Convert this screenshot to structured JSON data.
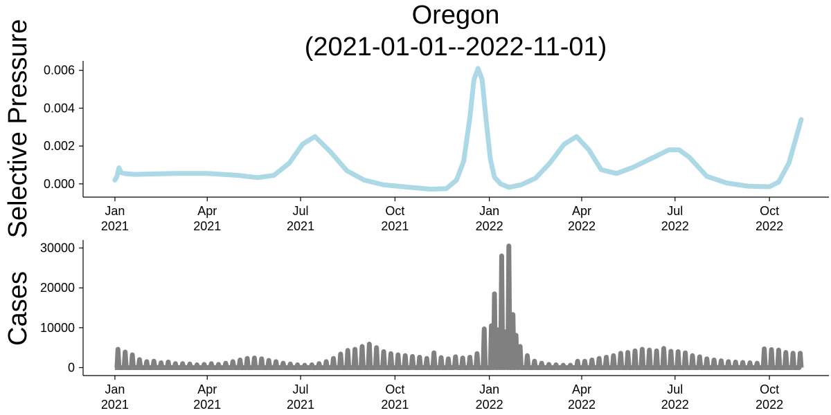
{
  "chart_data": [
    {
      "type": "line",
      "title": [
        "Oregon",
        "(2021-01-01--2022-11-01)"
      ],
      "ylabel": "Selective Pressure",
      "xlabel": "",
      "x_range": [
        "2020-12-01",
        "2022-11-28"
      ],
      "ylim": [
        -0.0007,
        0.0065
      ],
      "yticks": [
        0.0,
        0.002,
        0.004,
        0.006
      ],
      "ytick_labels": [
        "0.000",
        "0.002",
        "0.004",
        "0.006"
      ],
      "xticks": [
        "2021-01-01",
        "2021-04-01",
        "2021-07-01",
        "2021-10-01",
        "2022-01-01",
        "2022-04-01",
        "2022-07-01",
        "2022-10-01"
      ],
      "xtick_labels": [
        [
          "Jan",
          "2021"
        ],
        [
          "Apr",
          "2021"
        ],
        [
          "Jul",
          "2021"
        ],
        [
          "Oct",
          "2021"
        ],
        [
          "Jan",
          "2022"
        ],
        [
          "Apr",
          "2022"
        ],
        [
          "Jul",
          "2022"
        ],
        [
          "Oct",
          "2022"
        ]
      ],
      "grid": false,
      "color": "#add8e6",
      "series": [
        {
          "x": [
            "2021-01-01",
            "2021-01-03",
            "2021-01-05",
            "2021-01-07",
            "2021-01-10",
            "2021-01-20",
            "2021-02-05",
            "2021-03-01",
            "2021-04-01",
            "2021-05-01",
            "2021-05-20",
            "2021-06-05",
            "2021-06-20",
            "2021-07-03",
            "2021-07-15",
            "2021-07-30",
            "2021-08-15",
            "2021-09-01",
            "2021-09-20",
            "2021-10-15",
            "2021-11-05",
            "2021-11-20",
            "2021-11-30",
            "2021-12-07",
            "2021-12-13",
            "2021-12-17",
            "2021-12-21",
            "2021-12-25",
            "2021-12-29",
            "2022-01-02",
            "2022-01-06",
            "2022-01-12",
            "2022-01-20",
            "2022-02-01",
            "2022-02-15",
            "2022-03-01",
            "2022-03-15",
            "2022-03-27",
            "2022-04-08",
            "2022-04-20",
            "2022-05-05",
            "2022-05-20",
            "2022-06-10",
            "2022-06-25",
            "2022-07-05",
            "2022-07-15",
            "2022-08-01",
            "2022-08-20",
            "2022-09-10",
            "2022-10-01",
            "2022-10-10",
            "2022-10-20",
            "2022-11-01"
          ],
          "values": [
            0.0002,
            0.0004,
            0.00085,
            0.0006,
            0.00055,
            0.0005,
            0.00052,
            0.00055,
            0.00055,
            0.00045,
            0.00033,
            0.00045,
            0.0011,
            0.0021,
            0.0025,
            0.0017,
            0.0007,
            0.0002,
            -5e-05,
            -0.00018,
            -0.00028,
            -0.00025,
            0.0002,
            0.0012,
            0.0035,
            0.0055,
            0.0061,
            0.0055,
            0.0033,
            0.0013,
            0.00035,
            0.0,
            -0.00018,
            -5e-05,
            0.0003,
            0.0011,
            0.0021,
            0.0025,
            0.0018,
            0.00075,
            0.00055,
            0.00085,
            0.0014,
            0.0018,
            0.0018,
            0.0014,
            0.0004,
            5e-05,
            -0.00012,
            -0.00015,
            0.0001,
            0.0011,
            0.0034
          ]
        }
      ]
    },
    {
      "type": "line",
      "title": "",
      "ylabel": "Cases",
      "xlabel": "",
      "x_range": [
        "2020-12-01",
        "2022-11-28"
      ],
      "ylim": [
        -2000,
        32000
      ],
      "yticks": [
        0,
        10000,
        20000,
        30000
      ],
      "ytick_labels": [
        "0",
        "10000",
        "20000",
        "30000"
      ],
      "xticks": [
        "2021-01-01",
        "2021-04-01",
        "2021-07-01",
        "2021-10-01",
        "2022-01-01",
        "2022-04-01",
        "2022-07-01",
        "2022-10-01"
      ],
      "xtick_labels": [
        [
          "Jan",
          "2021"
        ],
        [
          "Apr",
          "2021"
        ],
        [
          "Jul",
          "2021"
        ],
        [
          "Oct",
          "2021"
        ],
        [
          "Jan",
          "2022"
        ],
        [
          "Apr",
          "2022"
        ],
        [
          "Jul",
          "2022"
        ],
        [
          "Oct",
          "2022"
        ]
      ],
      "grid": false,
      "color": "#808080",
      "series": [
        {
          "x_start": "2021-01-01",
          "x_end": "2022-11-01",
          "frequency": "weekly peaks (reported once per week, near zero between)",
          "x": [
            "2021-01-04",
            "2021-01-11",
            "2021-01-18",
            "2021-01-25",
            "2021-02-01",
            "2021-02-08",
            "2021-02-15",
            "2021-02-22",
            "2021-03-01",
            "2021-03-08",
            "2021-03-15",
            "2021-03-22",
            "2021-03-29",
            "2021-04-05",
            "2021-04-12",
            "2021-04-19",
            "2021-04-26",
            "2021-05-03",
            "2021-05-10",
            "2021-05-17",
            "2021-05-24",
            "2021-05-31",
            "2021-06-07",
            "2021-06-14",
            "2021-06-21",
            "2021-06-28",
            "2021-07-05",
            "2021-07-12",
            "2021-07-19",
            "2021-07-26",
            "2021-08-02",
            "2021-08-09",
            "2021-08-16",
            "2021-08-23",
            "2021-08-30",
            "2021-09-06",
            "2021-09-13",
            "2021-09-20",
            "2021-09-27",
            "2021-10-04",
            "2021-10-11",
            "2021-10-18",
            "2021-10-25",
            "2021-11-01",
            "2021-11-08",
            "2021-11-15",
            "2021-11-22",
            "2021-11-29",
            "2021-12-06",
            "2021-12-13",
            "2021-12-20",
            "2021-12-27",
            "2022-01-03",
            "2022-01-06",
            "2022-01-10",
            "2022-01-13",
            "2022-01-17",
            "2022-01-20",
            "2022-01-24",
            "2022-01-27",
            "2022-01-31",
            "2022-02-07",
            "2022-02-14",
            "2022-02-21",
            "2022-02-28",
            "2022-03-07",
            "2022-03-14",
            "2022-03-21",
            "2022-03-28",
            "2022-04-04",
            "2022-04-11",
            "2022-04-18",
            "2022-04-25",
            "2022-05-02",
            "2022-05-09",
            "2022-05-16",
            "2022-05-23",
            "2022-05-30",
            "2022-06-06",
            "2022-06-13",
            "2022-06-20",
            "2022-06-27",
            "2022-07-04",
            "2022-07-11",
            "2022-07-18",
            "2022-07-25",
            "2022-08-01",
            "2022-08-08",
            "2022-08-15",
            "2022-08-22",
            "2022-08-29",
            "2022-09-05",
            "2022-09-12",
            "2022-09-19",
            "2022-09-26",
            "2022-10-03",
            "2022-10-10",
            "2022-10-17",
            "2022-10-24",
            "2022-10-31"
          ],
          "values": [
            4600,
            3900,
            3200,
            2000,
            1500,
            1600,
            1200,
            1400,
            1000,
            1000,
            900,
            700,
            800,
            1000,
            800,
            1100,
            1500,
            1900,
            2300,
            2400,
            2200,
            1800,
            1500,
            1100,
            900,
            700,
            600,
            700,
            1000,
            1500,
            2300,
            3400,
            4300,
            4600,
            5300,
            5900,
            5000,
            4000,
            3500,
            3200,
            3000,
            2800,
            2600,
            2300,
            3700,
            2500,
            2200,
            2700,
            2400,
            2600,
            3500,
            9700,
            10500,
            18500,
            9500,
            28000,
            9000,
            30500,
            13300,
            8100,
            5300,
            3000,
            1600,
            1100,
            800,
            700,
            600,
            600,
            1600,
            1600,
            1900,
            2300,
            2600,
            3000,
            3600,
            3800,
            4200,
            4600,
            4400,
            4200,
            4800,
            4100,
            4000,
            3700,
            3000,
            2700,
            2200,
            1900,
            1700,
            1500,
            1400,
            1300,
            1200,
            1100,
            4700,
            4500,
            4400,
            3800,
            3600,
            3600
          ]
        }
      ]
    }
  ]
}
